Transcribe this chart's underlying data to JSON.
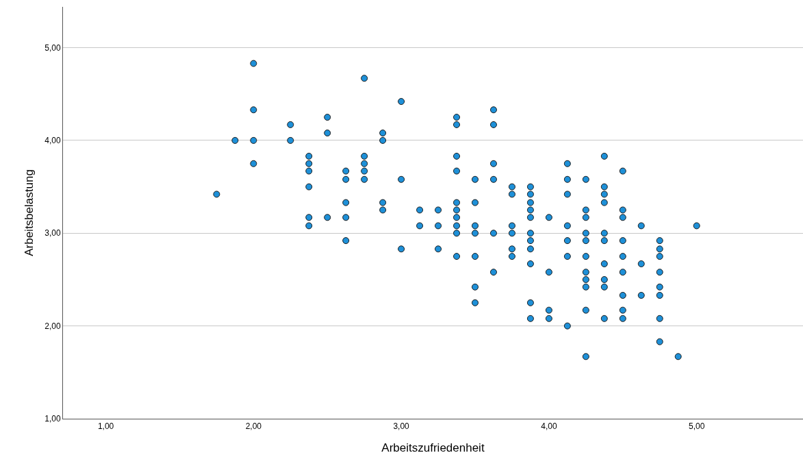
{
  "chart_data": {
    "type": "scatter",
    "xlabel": "Arbeitszufriedenheit",
    "ylabel": "Arbeitsbelastung",
    "x": [
      1.75,
      1.875,
      2,
      2,
      2,
      2,
      2.25,
      2.25,
      2.375,
      2.375,
      2.375,
      2.375,
      2.375,
      2.375,
      2.5,
      2.5,
      2.5,
      2.625,
      2.625,
      2.625,
      2.625,
      2.625,
      2.75,
      2.75,
      2.75,
      2.75,
      2.75,
      2.875,
      2.875,
      2.875,
      2.875,
      3,
      3,
      3,
      3.125,
      3.125,
      3.25,
      3.25,
      3.25,
      3.375,
      3.375,
      3.375,
      3.375,
      3.375,
      3.375,
      3.375,
      3.375,
      3.375,
      3.375,
      3.5,
      3.5,
      3.5,
      3.5,
      3.5,
      3.5,
      3.5,
      3.625,
      3.625,
      3.625,
      3.625,
      3.625,
      3.625,
      3.75,
      3.75,
      3.75,
      3.75,
      3.75,
      3.75,
      3.875,
      3.875,
      3.875,
      3.875,
      3.875,
      3.875,
      3.875,
      3.875,
      3.875,
      3.875,
      3.875,
      4,
      4,
      4,
      4,
      4.125,
      4.125,
      4.125,
      4.125,
      4.125,
      4.125,
      4.125,
      4.25,
      4.25,
      4.25,
      4.25,
      4.25,
      4.25,
      4.25,
      4.25,
      4.25,
      4.25,
      4.25,
      4.375,
      4.375,
      4.375,
      4.375,
      4.375,
      4.375,
      4.375,
      4.375,
      4.375,
      4.375,
      4.5,
      4.5,
      4.5,
      4.5,
      4.5,
      4.5,
      4.5,
      4.5,
      4.5,
      4.625,
      4.625,
      4.625,
      4.75,
      4.75,
      4.75,
      4.75,
      4.75,
      4.75,
      4.75,
      4.75,
      4.875,
      5
    ],
    "values": [
      3.42,
      4,
      4.83,
      4.33,
      4,
      3.75,
      4.17,
      4,
      3.83,
      3.75,
      3.67,
      3.5,
      3.17,
      3.08,
      4.25,
      4.08,
      3.17,
      3.67,
      3.58,
      3.33,
      3.17,
      2.92,
      4.67,
      3.83,
      3.75,
      3.67,
      3.58,
      4.08,
      4,
      3.33,
      3.25,
      4.42,
      3.58,
      2.83,
      3.25,
      3.08,
      3.25,
      3.08,
      2.83,
      4.25,
      4.17,
      3.83,
      3.67,
      3.33,
      3.25,
      3.17,
      3.08,
      3,
      2.75,
      3.58,
      3.33,
      3.08,
      3,
      2.75,
      2.42,
      2.25,
      4.33,
      4.17,
      3.75,
      3.58,
      3,
      2.58,
      3.5,
      3.42,
      3.08,
      3,
      2.83,
      2.75,
      3.5,
      3.42,
      3.33,
      3.25,
      3.17,
      3,
      2.92,
      2.83,
      2.67,
      2.25,
      2.08,
      3.17,
      2.58,
      2.17,
      2.08,
      3.75,
      3.58,
      3.42,
      3.08,
      2.92,
      2.75,
      2,
      3.58,
      3.25,
      3.17,
      3,
      2.92,
      2.75,
      2.58,
      2.5,
      2.42,
      2.17,
      1.67,
      3.83,
      3.5,
      3.42,
      3.33,
      3,
      2.92,
      2.67,
      2.5,
      2.42,
      2.08,
      3.67,
      3.25,
      3.17,
      2.92,
      2.75,
      2.58,
      2.33,
      2.17,
      2.08,
      3.08,
      2.67,
      2.33,
      2.92,
      2.83,
      2.75,
      2.58,
      2.42,
      2.33,
      2.08,
      1.83,
      1.67,
      3.08
    ],
    "color": "#1e90d8",
    "marker": "circle",
    "grid": "y",
    "xlim": [
      0.71,
      5.72
    ],
    "ylim": [
      1,
      5.44
    ],
    "xticks": [
      {
        "value": 1,
        "label": "1,00"
      },
      {
        "value": 2,
        "label": "2,00"
      },
      {
        "value": 3,
        "label": "3,00"
      },
      {
        "value": 4,
        "label": "4,00"
      },
      {
        "value": 5,
        "label": "5,00"
      }
    ],
    "yticks": [
      {
        "value": 1,
        "label": "1,00"
      },
      {
        "value": 2,
        "label": "2,00"
      },
      {
        "value": 3,
        "label": "3,00"
      },
      {
        "value": 4,
        "label": "4,00"
      },
      {
        "value": 5,
        "label": "5,00"
      }
    ]
  }
}
